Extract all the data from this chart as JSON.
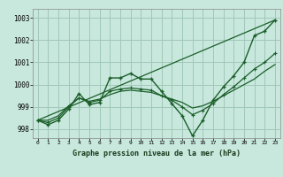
{
  "title": "Graphe pression niveau de la mer (hPa)",
  "bg_color": "#c8e8de",
  "grid_color": "#a0c8b8",
  "line_color": "#1a5e28",
  "xlim": [
    -0.5,
    23.5
  ],
  "ylim": [
    997.6,
    1003.4
  ],
  "yticks": [
    998,
    999,
    1000,
    1001,
    1002,
    1003
  ],
  "xticks": [
    0,
    1,
    2,
    3,
    4,
    5,
    6,
    7,
    8,
    9,
    10,
    11,
    12,
    13,
    14,
    15,
    16,
    17,
    18,
    19,
    20,
    21,
    22,
    23
  ],
  "line1_x": [
    0,
    1,
    2,
    3,
    4,
    5,
    6,
    7,
    8,
    9,
    10,
    11,
    12,
    13,
    14,
    15,
    16,
    17,
    18,
    19,
    20,
    21,
    22,
    23
  ],
  "line1_y": [
    998.4,
    998.2,
    998.4,
    998.9,
    999.6,
    999.1,
    999.2,
    1000.3,
    1000.3,
    1000.5,
    1000.25,
    1000.25,
    999.7,
    999.15,
    998.6,
    997.7,
    998.4,
    999.3,
    999.9,
    1000.4,
    1001.0,
    1002.2,
    1002.4,
    1002.9
  ],
  "line2_x": [
    0,
    1,
    2,
    3,
    4,
    5,
    6,
    7,
    8,
    9,
    10,
    11,
    12,
    13,
    14,
    15,
    16,
    17,
    18,
    19,
    20,
    21,
    22,
    23
  ],
  "line2_y": [
    998.4,
    998.3,
    998.5,
    999.0,
    999.4,
    999.2,
    999.3,
    999.7,
    999.8,
    999.85,
    999.8,
    999.75,
    999.5,
    999.3,
    999.0,
    998.65,
    998.85,
    999.15,
    999.55,
    999.9,
    1000.3,
    1000.7,
    1001.0,
    1001.4
  ],
  "line3_x": [
    0,
    1,
    2,
    3,
    4,
    5,
    6,
    7,
    8,
    9,
    10,
    11,
    12,
    13,
    14,
    15,
    16,
    17,
    18,
    19,
    20,
    21,
    22,
    23
  ],
  "line3_y": [
    998.4,
    998.4,
    998.6,
    999.05,
    999.4,
    999.25,
    999.35,
    999.55,
    999.7,
    999.75,
    999.7,
    999.65,
    999.5,
    999.35,
    999.2,
    998.95,
    999.05,
    999.25,
    999.5,
    999.75,
    1000.0,
    1000.25,
    1000.6,
    1000.9
  ],
  "line4_x": [
    0,
    23
  ],
  "line4_y": [
    998.4,
    1002.9
  ]
}
